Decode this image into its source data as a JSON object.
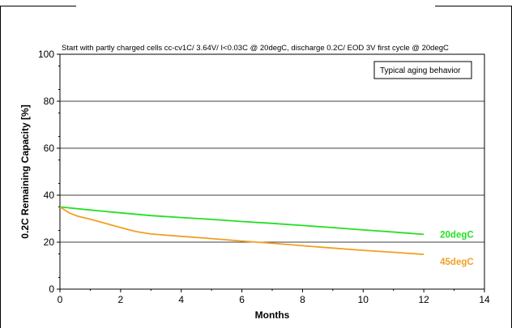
{
  "chart_data": {
    "type": "line",
    "subtitle": "Start with partly charged cells cc-cv1C/ 3.64V/ I<0.03C @ 20degC, discharge 0.2C/ EOD 3V first cycle @ 20degC",
    "annotation": "Typical aging behavior",
    "xlabel": "Months",
    "ylabel": "0.2C Remaining Capacity [%]",
    "xlim": [
      0,
      14
    ],
    "ylim": [
      0,
      100
    ],
    "xticks": [
      "0",
      "2",
      "4",
      "6",
      "8",
      "10",
      "12",
      "14"
    ],
    "yticks": [
      "0",
      "20",
      "40",
      "60",
      "80",
      "100"
    ],
    "grid": "horizontal",
    "series": [
      {
        "name": "20degC",
        "color": "#22e022",
        "x": [
          0,
          1,
          2,
          3,
          4,
          5,
          6,
          7,
          8,
          9,
          10,
          11,
          12
        ],
        "y": [
          35,
          33.7,
          32.5,
          31.3,
          30.5,
          29.7,
          28.8,
          28,
          27.1,
          26.2,
          25.2,
          24.3,
          23.3
        ]
      },
      {
        "name": "45degC",
        "color": "#f0a020",
        "x": [
          0,
          0.3,
          0.6,
          1,
          1.5,
          2,
          2.5,
          3,
          4,
          5,
          6,
          7,
          8,
          9,
          10,
          11,
          12
        ],
        "y": [
          35,
          32.5,
          31,
          29.8,
          28,
          26.2,
          24.5,
          23.5,
          22.5,
          21.5,
          20.5,
          19.5,
          18.5,
          17.5,
          16.5,
          15.7,
          14.8
        ]
      }
    ]
  }
}
